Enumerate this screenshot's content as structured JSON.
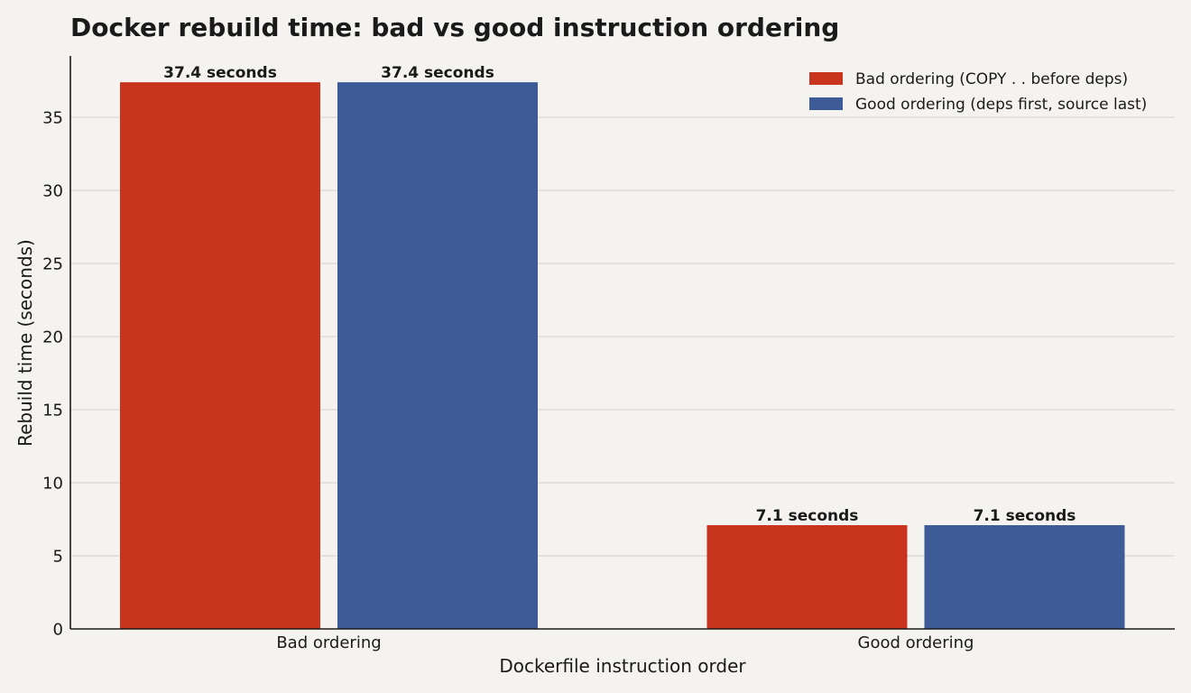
{
  "chart_data": {
    "type": "bar",
    "title": "Docker rebuild time: bad vs good instruction ordering",
    "xlabel": "Dockerfile instruction order",
    "ylabel": "Rebuild time (seconds)",
    "categories": [
      "Bad ordering",
      "Good ordering"
    ],
    "series": [
      {
        "name": "Bad ordering (COPY . . before deps)",
        "color": "#c9341f",
        "values": [
          37.4,
          7.1
        ],
        "labels": [
          "37.4 seconds",
          "7.1 seconds"
        ]
      },
      {
        "name": "Good ordering (deps first, source last)",
        "color": "#3d5b96",
        "values": [
          37.4,
          7.1
        ],
        "labels": [
          "37.4 seconds",
          "7.1 seconds"
        ]
      }
    ],
    "ylim": [
      0,
      39.2
    ],
    "yticks": [
      0,
      5,
      10,
      15,
      20,
      25,
      30,
      35
    ],
    "grid": true,
    "legend_position": "top-right"
  }
}
